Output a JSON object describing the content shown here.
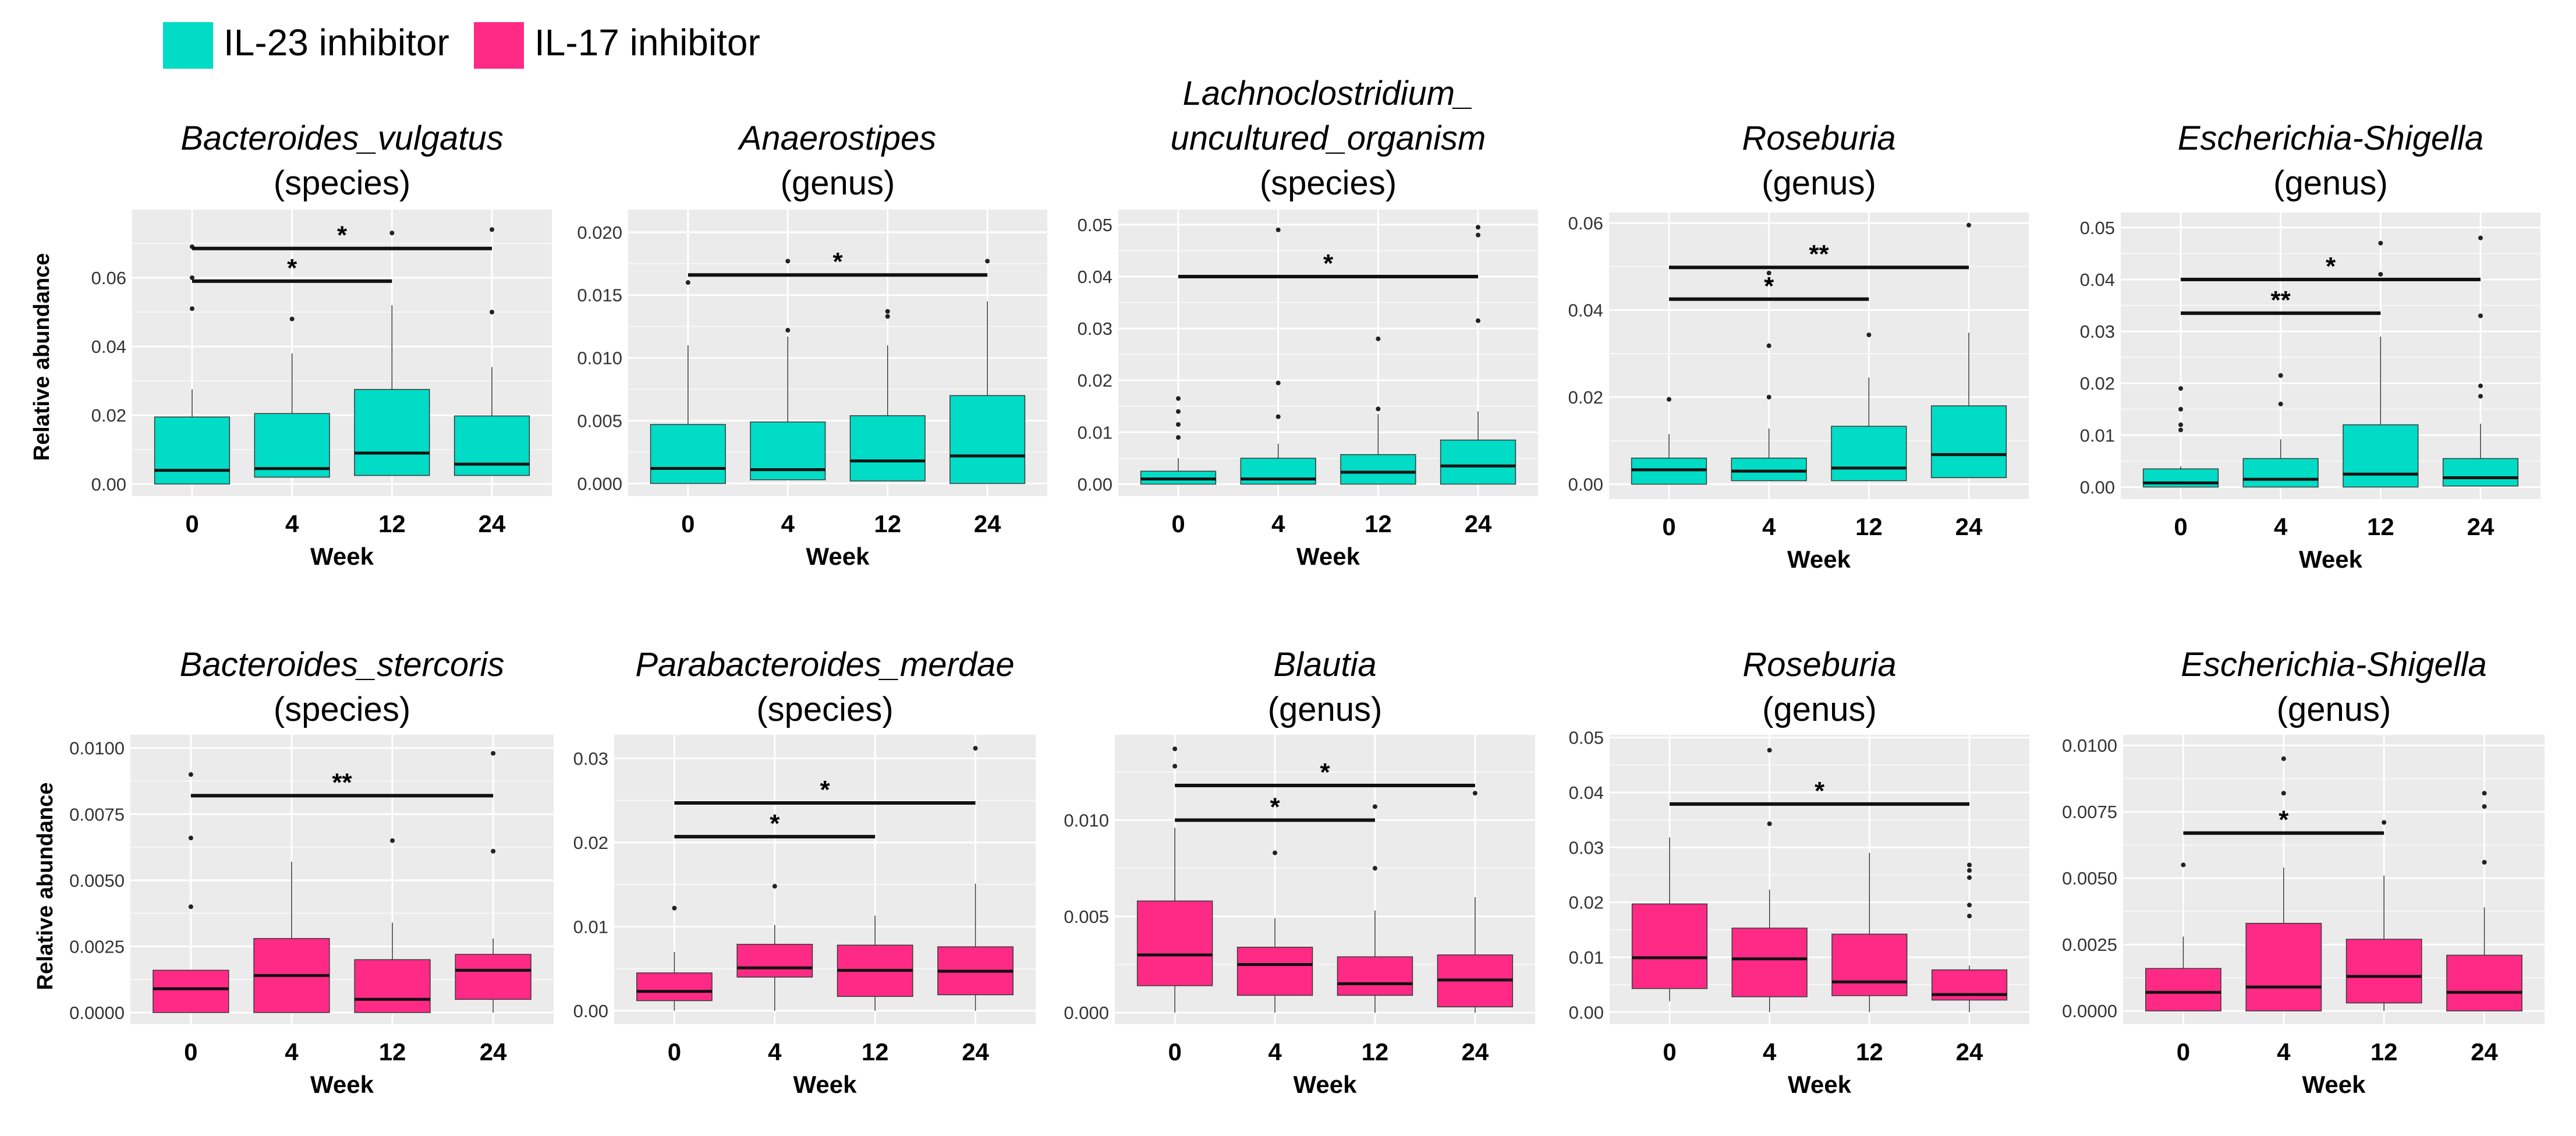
{
  "legend": {
    "items": [
      {
        "label": "IL-23 inhibitor",
        "color": "#00DCC5"
      },
      {
        "label": "IL-17 inhibitor",
        "color": "#FF2A85"
      }
    ]
  },
  "y_axis_label": "Relative abundance",
  "x_axis_label": "Week",
  "chart_data": [
    {
      "type": "box",
      "row": "top",
      "group": "IL-23 inhibitor",
      "title": [
        "Bacteroides_vulgatus",
        "(species)"
      ],
      "categories": [
        "0",
        "4",
        "12",
        "24"
      ],
      "ylim": [
        -0.0035,
        0.0798
      ],
      "yticks": [
        0,
        0.02,
        0.04,
        0.06
      ],
      "ytick_labels": [
        "0.00",
        "0.02",
        "0.04",
        "0.06"
      ],
      "boxes": [
        {
          "lo": 0,
          "q1": 0,
          "med": 0.004,
          "q3": 0.0195,
          "hi": 0.0275,
          "outliers": [
            0.051,
            0.06,
            0.069
          ]
        },
        {
          "lo": 0.002,
          "q1": 0.002,
          "med": 0.0045,
          "q3": 0.0205,
          "hi": 0.038,
          "outliers": [
            0.048
          ]
        },
        {
          "lo": 0.0025,
          "q1": 0.0025,
          "med": 0.009,
          "q3": 0.0275,
          "hi": 0.052,
          "outliers": [
            0.073
          ]
        },
        {
          "lo": 0.0025,
          "q1": 0.0025,
          "med": 0.0058,
          "q3": 0.0198,
          "hi": 0.034,
          "outliers": [
            0.05,
            0.074
          ]
        }
      ],
      "brackets": [
        {
          "from": 0,
          "to": 3,
          "y": 0.0685,
          "label": "*"
        },
        {
          "from": 0,
          "to": 2,
          "y": 0.059,
          "label": "*"
        }
      ]
    },
    {
      "type": "box",
      "row": "top",
      "group": "IL-23 inhibitor",
      "title": [
        "Anaerostipes",
        "(genus)"
      ],
      "categories": [
        "0",
        "4",
        "12",
        "24"
      ],
      "ylim": [
        -0.001,
        0.0218
      ],
      "yticks": [
        0,
        0.005,
        0.01,
        0.015,
        0.02
      ],
      "ytick_labels": [
        "0.000",
        "0.005",
        "0.010",
        "0.015",
        "0.020"
      ],
      "boxes": [
        {
          "lo": 0,
          "q1": 0,
          "med": 0.0012,
          "q3": 0.0047,
          "hi": 0.011,
          "outliers": [
            0.016
          ]
        },
        {
          "lo": 0.0003,
          "q1": 0.0003,
          "med": 0.0011,
          "q3": 0.0049,
          "hi": 0.0117,
          "outliers": [
            0.0122,
            0.0177
          ]
        },
        {
          "lo": 0.0002,
          "q1": 0.0002,
          "med": 0.0018,
          "q3": 0.0054,
          "hi": 0.011,
          "outliers": [
            0.0133,
            0.0137
          ]
        },
        {
          "lo": 0,
          "q1": 0,
          "med": 0.0022,
          "q3": 0.007,
          "hi": 0.0145,
          "outliers": [
            0.0177
          ]
        }
      ],
      "brackets": [
        {
          "from": 0,
          "to": 3,
          "y": 0.0166,
          "label": "*"
        }
      ]
    },
    {
      "type": "box",
      "row": "top",
      "group": "IL-23 inhibitor",
      "title": [
        "Lachnoclostridium_",
        "uncultured_organism",
        "(species)"
      ],
      "categories": [
        "0",
        "4",
        "12",
        "24"
      ],
      "ylim": [
        -0.0023,
        0.0529
      ],
      "yticks": [
        0,
        0.01,
        0.02,
        0.03,
        0.04,
        0.05
      ],
      "ytick_labels": [
        "0.00",
        "0.01",
        "0.02",
        "0.03",
        "0.04",
        "0.05"
      ],
      "boxes": [
        {
          "lo": 0,
          "q1": 0,
          "med": 0.001,
          "q3": 0.0025,
          "hi": 0.005,
          "outliers": [
            0.009,
            0.0115,
            0.014,
            0.0165
          ]
        },
        {
          "lo": 0,
          "q1": 0,
          "med": 0.001,
          "q3": 0.005,
          "hi": 0.0078,
          "outliers": [
            0.013,
            0.0195,
            0.049
          ]
        },
        {
          "lo": 0,
          "q1": 0,
          "med": 0.0023,
          "q3": 0.0057,
          "hi": 0.0135,
          "outliers": [
            0.0145,
            0.028
          ]
        },
        {
          "lo": 0,
          "q1": 0,
          "med": 0.0035,
          "q3": 0.0085,
          "hi": 0.014,
          "outliers": [
            0.0315,
            0.048,
            0.0495
          ]
        }
      ],
      "brackets": [
        {
          "from": 0,
          "to": 3,
          "y": 0.04,
          "label": "*"
        }
      ]
    },
    {
      "type": "box",
      "row": "top",
      "group": "IL-23 inhibitor",
      "title": [
        "Roseburia",
        "(genus)"
      ],
      "categories": [
        "0",
        "4",
        "12",
        "24"
      ],
      "ylim": [
        -0.0034,
        0.0624
      ],
      "yticks": [
        0,
        0.02,
        0.04,
        0.06
      ],
      "ytick_labels": [
        "0.00",
        "0.02",
        "0.04",
        "0.06"
      ],
      "boxes": [
        {
          "lo": 0,
          "q1": 0,
          "med": 0.0033,
          "q3": 0.006,
          "hi": 0.0115,
          "outliers": [
            0.0195
          ]
        },
        {
          "lo": 0.0008,
          "q1": 0.0008,
          "med": 0.003,
          "q3": 0.006,
          "hi": 0.0128,
          "outliers": [
            0.02,
            0.0318,
            0.0465,
            0.0485
          ]
        },
        {
          "lo": 0.0008,
          "q1": 0.0008,
          "med": 0.0037,
          "q3": 0.0133,
          "hi": 0.0245,
          "outliers": [
            0.0343
          ]
        },
        {
          "lo": 0.0015,
          "q1": 0.0015,
          "med": 0.0068,
          "q3": 0.018,
          "hi": 0.0348,
          "outliers": [
            0.0595
          ]
        }
      ],
      "brackets": [
        {
          "from": 0,
          "to": 3,
          "y": 0.0498,
          "label": "**"
        },
        {
          "from": 0,
          "to": 2,
          "y": 0.0425,
          "label": "*"
        }
      ]
    },
    {
      "type": "box",
      "row": "top",
      "group": "IL-23 inhibitor",
      "title": [
        "Escherichia-Shigella",
        "(genus)"
      ],
      "categories": [
        "0",
        "4",
        "12",
        "24"
      ],
      "ylim": [
        -0.0023,
        0.0529
      ],
      "yticks": [
        0,
        0.01,
        0.02,
        0.03,
        0.04,
        0.05
      ],
      "ytick_labels": [
        "0.00",
        "0.01",
        "0.02",
        "0.03",
        "0.04",
        "0.05"
      ],
      "boxes": [
        {
          "lo": 0,
          "q1": 0,
          "med": 0.0008,
          "q3": 0.0035,
          "hi": 0.004,
          "outliers": [
            0.011,
            0.012,
            0.015,
            0.019
          ]
        },
        {
          "lo": 0,
          "q1": 0,
          "med": 0.0015,
          "q3": 0.0055,
          "hi": 0.0092,
          "outliers": [
            0.016,
            0.0215
          ]
        },
        {
          "lo": 0,
          "q1": 0,
          "med": 0.0025,
          "q3": 0.012,
          "hi": 0.029,
          "outliers": [
            0.041,
            0.047
          ]
        },
        {
          "lo": 0.0002,
          "q1": 0.0002,
          "med": 0.0018,
          "q3": 0.0055,
          "hi": 0.0122,
          "outliers": [
            0.0175,
            0.0195,
            0.033,
            0.048
          ]
        }
      ],
      "brackets": [
        {
          "from": 0,
          "to": 3,
          "y": 0.04,
          "label": "*"
        },
        {
          "from": 0,
          "to": 2,
          "y": 0.0335,
          "label": "**"
        }
      ]
    },
    {
      "type": "box",
      "row": "bottom",
      "group": "IL-17 inhibitor",
      "title": [
        "Bacteroides_stercoris",
        "(species)"
      ],
      "categories": [
        "0",
        "4",
        "12",
        "24"
      ],
      "ylim": [
        -0.00044,
        0.0105
      ],
      "yticks": [
        0,
        0.0025,
        0.005,
        0.0075,
        0.01
      ],
      "ytick_labels": [
        "0.0000",
        "0.0025",
        "0.0050",
        "0.0075",
        "0.0100"
      ],
      "boxes": [
        {
          "lo": 0,
          "q1": 0,
          "med": 0.0009,
          "q3": 0.0016,
          "hi": 0.0016,
          "outliers": [
            0.004,
            0.0066,
            0.009
          ]
        },
        {
          "lo": 0,
          "q1": 0,
          "med": 0.0014,
          "q3": 0.0028,
          "hi": 0.0057,
          "outliers": []
        },
        {
          "lo": 0,
          "q1": 0,
          "med": 0.0005,
          "q3": 0.002,
          "hi": 0.0034,
          "outliers": [
            0.0065
          ]
        },
        {
          "lo": 0,
          "q1": 0.0005,
          "med": 0.0016,
          "q3": 0.0022,
          "hi": 0.0028,
          "outliers": [
            0.0061,
            0.0098
          ]
        }
      ],
      "brackets": [
        {
          "from": 0,
          "to": 3,
          "y": 0.0082,
          "label": "**"
        }
      ]
    },
    {
      "type": "box",
      "row": "bottom",
      "group": "IL-17 inhibitor",
      "title": [
        "Parabacteroides_merdae",
        "(species)"
      ],
      "categories": [
        "0",
        "4",
        "12",
        "24"
      ],
      "ylim": [
        -0.0016,
        0.0328
      ],
      "yticks": [
        0,
        0.01,
        0.02,
        0.03
      ],
      "ytick_labels": [
        "0.00",
        "0.01",
        "0.02",
        "0.03"
      ],
      "boxes": [
        {
          "lo": 0,
          "q1": 0.0012,
          "med": 0.0023,
          "q3": 0.0045,
          "hi": 0.007,
          "outliers": [
            0.0122
          ]
        },
        {
          "lo": 0,
          "q1": 0.004,
          "med": 0.0051,
          "q3": 0.0079,
          "hi": 0.0102,
          "outliers": [
            0.0148
          ]
        },
        {
          "lo": 0,
          "q1": 0.0017,
          "med": 0.0048,
          "q3": 0.0078,
          "hi": 0.0113,
          "outliers": []
        },
        {
          "lo": 0,
          "q1": 0.0019,
          "med": 0.0047,
          "q3": 0.0076,
          "hi": 0.0151,
          "outliers": [
            0.0312
          ]
        }
      ],
      "brackets": [
        {
          "from": 0,
          "to": 3,
          "y": 0.0247,
          "label": "*"
        },
        {
          "from": 0,
          "to": 2,
          "y": 0.0207,
          "label": "*"
        }
      ]
    },
    {
      "type": "box",
      "row": "bottom",
      "group": "IL-17 inhibitor",
      "title": [
        "Blautia",
        "(genus)"
      ],
      "categories": [
        "0",
        "4",
        "12",
        "24"
      ],
      "ylim": [
        -0.0006,
        0.01443
      ],
      "yticks": [
        0,
        0.005,
        0.01
      ],
      "ytick_labels": [
        "0.000",
        "0.005",
        "0.010"
      ],
      "boxes": [
        {
          "lo": 0,
          "q1": 0.0014,
          "med": 0.003,
          "q3": 0.0058,
          "hi": 0.0096,
          "outliers": [
            0.0128,
            0.0137
          ]
        },
        {
          "lo": 0,
          "q1": 0.0009,
          "med": 0.0025,
          "q3": 0.0034,
          "hi": 0.0049,
          "outliers": [
            0.0083
          ]
        },
        {
          "lo": 0,
          "q1": 0.0009,
          "med": 0.0015,
          "q3": 0.0029,
          "hi": 0.0053,
          "outliers": [
            0.0075,
            0.0107
          ]
        },
        {
          "lo": 0,
          "q1": 0.0003,
          "med": 0.0017,
          "q3": 0.003,
          "hi": 0.006,
          "outliers": [
            0.0114
          ]
        }
      ],
      "brackets": [
        {
          "from": 0,
          "to": 3,
          "y": 0.0118,
          "label": "*"
        },
        {
          "from": 0,
          "to": 2,
          "y": 0.01,
          "label": "*"
        }
      ]
    },
    {
      "type": "box",
      "row": "bottom",
      "group": "IL-17 inhibitor",
      "title": [
        "Roseburia",
        "(genus)"
      ],
      "categories": [
        "0",
        "4",
        "12",
        "24"
      ],
      "ylim": [
        -0.0022,
        0.0505
      ],
      "yticks": [
        0,
        0.01,
        0.02,
        0.03,
        0.04,
        0.05
      ],
      "ytick_labels": [
        "0.00",
        "0.01",
        "0.02",
        "0.03",
        "0.04",
        "0.05"
      ],
      "boxes": [
        {
          "lo": 0.002,
          "q1": 0.0043,
          "med": 0.0099,
          "q3": 0.0197,
          "hi": 0.0318,
          "outliers": []
        },
        {
          "lo": 0,
          "q1": 0.0028,
          "med": 0.0097,
          "q3": 0.0153,
          "hi": 0.0223,
          "outliers": [
            0.0343,
            0.0477
          ]
        },
        {
          "lo": 0,
          "q1": 0.003,
          "med": 0.0055,
          "q3": 0.0142,
          "hi": 0.029,
          "outliers": []
        },
        {
          "lo": 0,
          "q1": 0.0022,
          "med": 0.0032,
          "q3": 0.0077,
          "hi": 0.0085,
          "outliers": [
            0.0175,
            0.0195,
            0.0245,
            0.0258,
            0.0268
          ]
        }
      ],
      "brackets": [
        {
          "from": 0,
          "to": 3,
          "y": 0.0379,
          "label": "*"
        }
      ]
    },
    {
      "type": "box",
      "row": "bottom",
      "group": "IL-17 inhibitor",
      "title": [
        "Escherichia-Shigella",
        "(genus)"
      ],
      "categories": [
        "0",
        "4",
        "12",
        "24"
      ],
      "ylim": [
        -0.0005,
        0.0104
      ],
      "yticks": [
        0,
        0.0025,
        0.005,
        0.0075,
        0.01
      ],
      "ytick_labels": [
        "0.0000",
        "0.0025",
        "0.0050",
        "0.0075",
        "0.0100"
      ],
      "boxes": [
        {
          "lo": 0,
          "q1": 0,
          "med": 0.0007,
          "q3": 0.0016,
          "hi": 0.0028,
          "outliers": [
            0.0055
          ]
        },
        {
          "lo": 0,
          "q1": 0,
          "med": 0.0009,
          "q3": 0.0033,
          "hi": 0.0054,
          "outliers": [
            0.0082,
            0.0095
          ]
        },
        {
          "lo": 0,
          "q1": 0.0003,
          "med": 0.0013,
          "q3": 0.0027,
          "hi": 0.0051,
          "outliers": [
            0.0071
          ]
        },
        {
          "lo": 0,
          "q1": 0,
          "med": 0.0007,
          "q3": 0.0021,
          "hi": 0.0039,
          "outliers": [
            0.0056,
            0.0077,
            0.0082
          ]
        }
      ],
      "brackets": [
        {
          "from": 0,
          "to": 2,
          "y": 0.0067,
          "label": "*"
        }
      ]
    }
  ]
}
